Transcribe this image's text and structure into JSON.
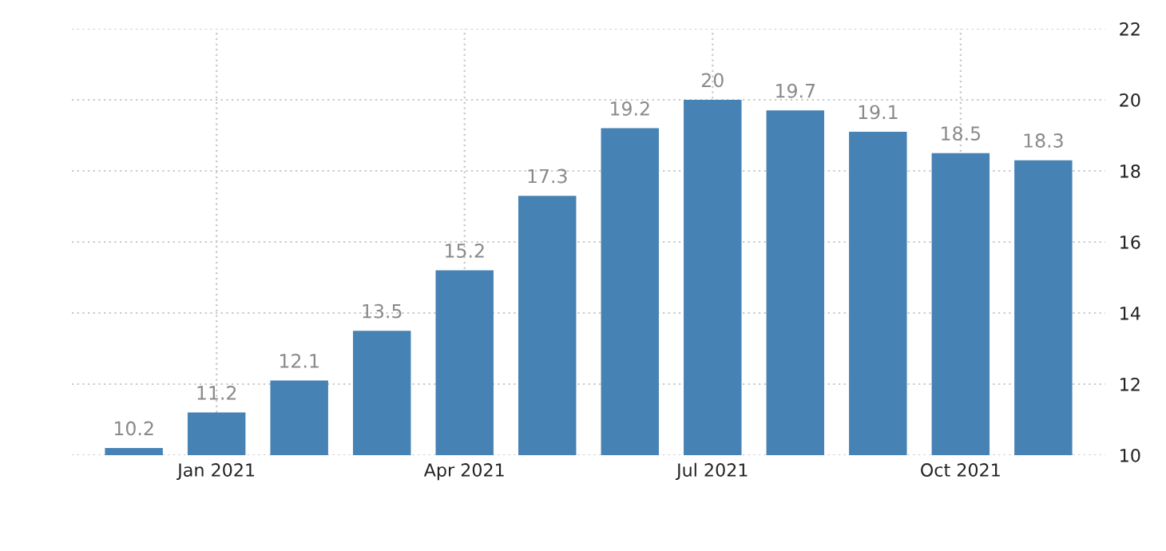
{
  "chart_data": {
    "type": "bar",
    "categories": [
      null,
      "Jan 2021",
      null,
      null,
      "Apr 2021",
      null,
      null,
      "Jul 2021",
      null,
      null,
      "Oct 2021",
      null
    ],
    "values": [
      10.2,
      11.2,
      12.1,
      13.5,
      15.2,
      17.3,
      19.2,
      20,
      19.7,
      19.1,
      18.5,
      18.3
    ],
    "color": "#4682b4",
    "ylim": [
      10,
      22
    ],
    "yticks": [
      10,
      12,
      14,
      16,
      18,
      20,
      22
    ],
    "grid": true,
    "data_labels": true
  }
}
